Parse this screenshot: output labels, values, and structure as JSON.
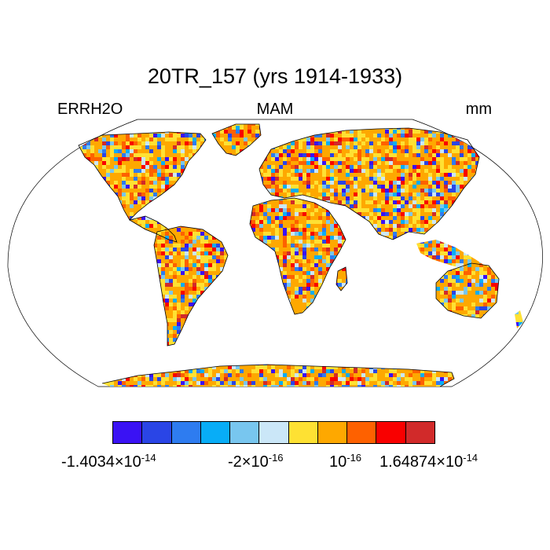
{
  "title": "20TR_157 (yrs 1914-1933)",
  "left_label": "ERRH2O",
  "center_label": "MAM",
  "right_label": "mm",
  "colorbar": {
    "colors": [
      "#3a12f4",
      "#2a45e6",
      "#2e7cf0",
      "#08adf7",
      "#78c6ef",
      "#cbe7f8",
      "#fee133",
      "#fea800",
      "#fe6100",
      "#f90000",
      "#d12a2a"
    ],
    "labels": [
      {
        "mantissa": "-1.4034",
        "times": "×",
        "base": "10",
        "exp": "-14"
      },
      {
        "mantissa": "-2",
        "times": "×",
        "base": "10",
        "exp": "-16"
      },
      {
        "mantissa": "",
        "times": "",
        "base": "10",
        "exp": "-16"
      },
      {
        "mantissa": "1.64874",
        "times": "×",
        "base": "10",
        "exp": "-14"
      }
    ]
  },
  "map": {
    "projection": "robinson",
    "field_colors": [
      "#3a12f4",
      "#2a45e6",
      "#2e7cf0",
      "#08adf7",
      "#78c6ef",
      "#cbe7f8",
      "#fee133",
      "#fea800",
      "#fe6100",
      "#f90000",
      "#d12a2a"
    ]
  }
}
